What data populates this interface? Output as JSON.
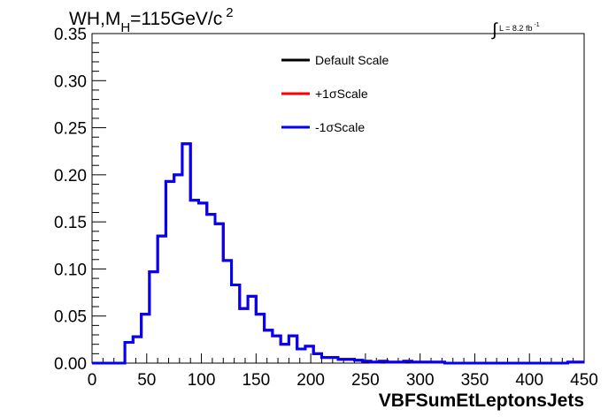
{
  "header": {
    "title_main": "WH,M",
    "title_sub": "H",
    "title_rest": "=115GeV/c",
    "title_sup": "2",
    "lumi_integral": "∫",
    "lumi_text": "L = 8.2 fb",
    "lumi_sup": "-1"
  },
  "chart_data": {
    "type": "line",
    "step": true,
    "title": "WH,MH=115GeV/c2",
    "xlabel": "VBFSumEtLeptonsJets",
    "ylabel": "",
    "xlim": [
      0,
      450
    ],
    "ylim": [
      0,
      0.35
    ],
    "x_ticks": [
      0,
      50,
      100,
      150,
      200,
      250,
      300,
      350,
      400,
      450
    ],
    "x_tick_labels": [
      "0",
      "50",
      "100",
      "150",
      "200",
      "250",
      "300",
      "350",
      "400",
      "450"
    ],
    "y_ticks": [
      0,
      0.05,
      0.1,
      0.15,
      0.2,
      0.25,
      0.3,
      0.35
    ],
    "y_tick_labels": [
      "0.00",
      "0.05",
      "0.10",
      "0.15",
      "0.20",
      "0.25",
      "0.30",
      "0.35"
    ],
    "grid": false,
    "legend_position": "top-center",
    "bin_edges": [
      0,
      7.5,
      15,
      22.5,
      30,
      37.5,
      45,
      52.5,
      60,
      67.5,
      75,
      82.5,
      90,
      97.5,
      105,
      112.5,
      120,
      127.5,
      135,
      142.5,
      150,
      157.5,
      165,
      172.5,
      180,
      187.5,
      195,
      202.5,
      210,
      217.5,
      225,
      232.5,
      240,
      247.5,
      255,
      262.5,
      270,
      277.5,
      285,
      292.5,
      300,
      307.5,
      315,
      322.5,
      330,
      337.5,
      345,
      352.5,
      360,
      367.5,
      375,
      382.5,
      390,
      397.5,
      405,
      412.5,
      420,
      427.5,
      435,
      442.5,
      450
    ],
    "series": [
      {
        "name": "Default Scale",
        "color": "#000000",
        "values": [
          0,
          0,
          0,
          0,
          0.022,
          0.028,
          0.052,
          0.097,
          0.135,
          0.193,
          0.2,
          0.233,
          0.173,
          0.17,
          0.158,
          0.148,
          0.109,
          0.083,
          0.058,
          0.071,
          0.052,
          0.035,
          0.029,
          0.02,
          0.029,
          0.015,
          0.018,
          0.01,
          0.006,
          0.006,
          0.004,
          0.004,
          0.003,
          0.002,
          0.001,
          0.002,
          0.001,
          0.001,
          0.002,
          0.001,
          0.001,
          0.001,
          0.001,
          0,
          0,
          0,
          0,
          0,
          0,
          0,
          0,
          0,
          0,
          0,
          0,
          0,
          0,
          0,
          0.001,
          0.001
        ]
      },
      {
        "name": "+1σScale",
        "color": "#ff0000",
        "values": [
          0,
          0,
          0,
          0,
          0.022,
          0.028,
          0.052,
          0.097,
          0.135,
          0.193,
          0.2,
          0.233,
          0.173,
          0.17,
          0.158,
          0.148,
          0.109,
          0.083,
          0.058,
          0.071,
          0.052,
          0.035,
          0.029,
          0.02,
          0.029,
          0.015,
          0.018,
          0.01,
          0.006,
          0.006,
          0.004,
          0.004,
          0.003,
          0.002,
          0.001,
          0.002,
          0.001,
          0.001,
          0.002,
          0.001,
          0.001,
          0.001,
          0.001,
          0,
          0,
          0,
          0,
          0,
          0,
          0,
          0,
          0,
          0,
          0,
          0,
          0,
          0,
          0,
          0.001,
          0.001
        ]
      },
      {
        "name": "-1σScale",
        "color": "#0000ff",
        "values": [
          0,
          0,
          0,
          0,
          0.022,
          0.028,
          0.052,
          0.097,
          0.135,
          0.193,
          0.2,
          0.233,
          0.173,
          0.17,
          0.158,
          0.148,
          0.109,
          0.083,
          0.058,
          0.071,
          0.052,
          0.035,
          0.029,
          0.02,
          0.029,
          0.015,
          0.018,
          0.01,
          0.006,
          0.006,
          0.004,
          0.004,
          0.003,
          0.002,
          0.001,
          0.002,
          0.001,
          0.001,
          0.002,
          0.001,
          0.001,
          0.001,
          0.001,
          0,
          0,
          0,
          0,
          0,
          0,
          0,
          0,
          0,
          0,
          0,
          0,
          0,
          0,
          0,
          0.001,
          0.001
        ]
      }
    ]
  }
}
